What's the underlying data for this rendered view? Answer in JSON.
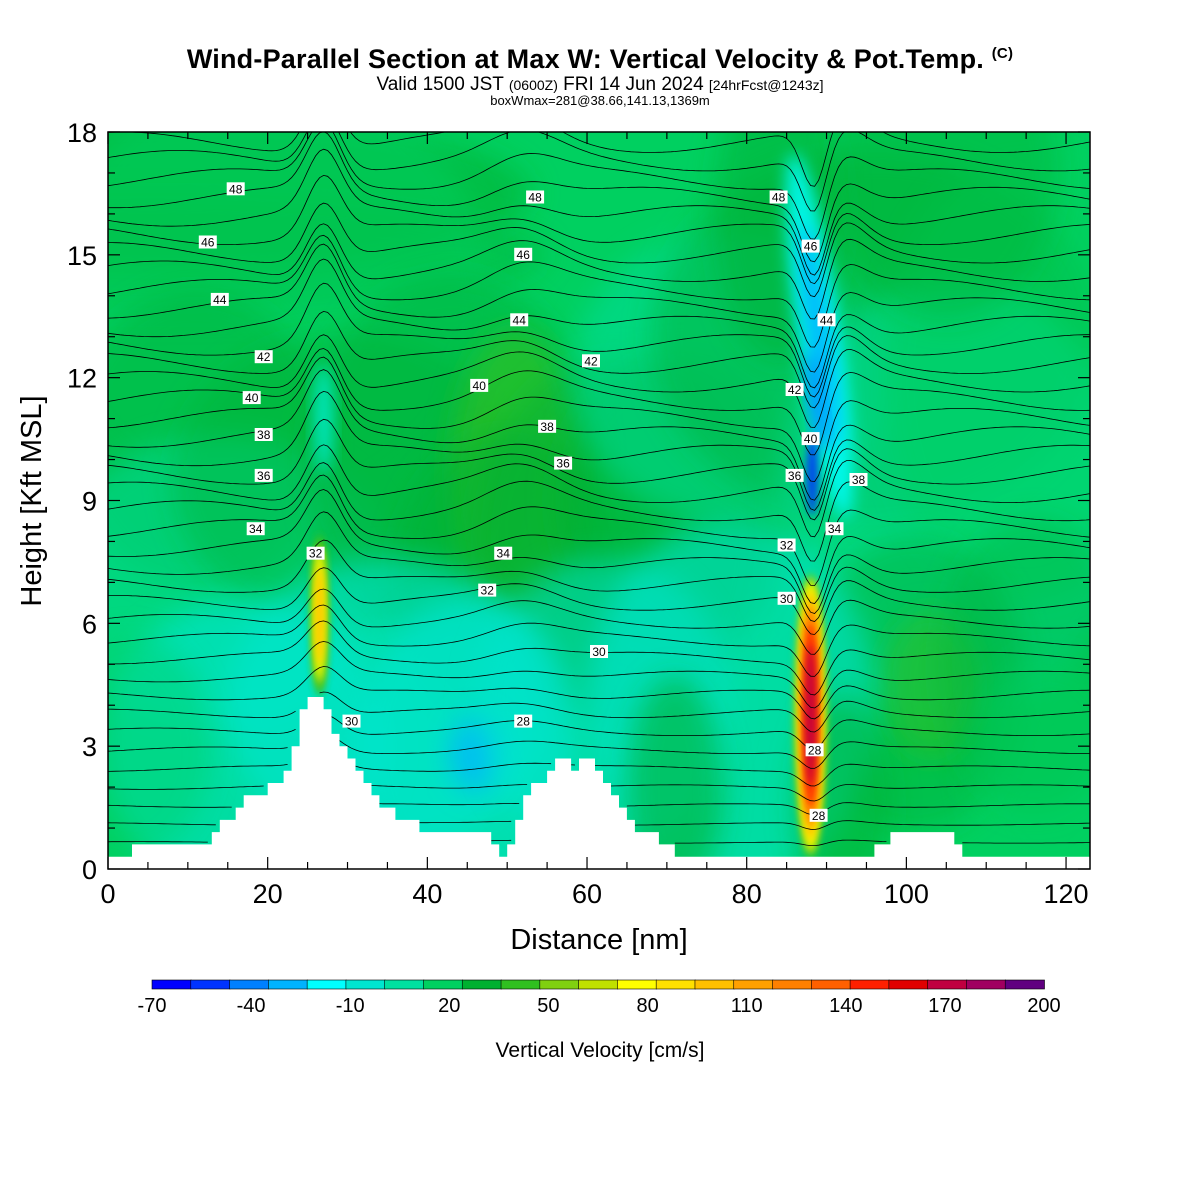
{
  "title": "Wind-Parallel Section at Max W: Vertical Velocity & Pot.Temp.",
  "title_mark": "(C)",
  "subtitle_main": "Valid 1500 JST",
  "subtitle_zulu": "(0600Z)",
  "subtitle_date": "FRI 14 Jun 2024",
  "subtitle_fcst": "[24hrFcst@1243z]",
  "subtitle2": "boxWmax=281@38.66,141.13,1369m",
  "chart_data": {
    "type": "heatmap",
    "xlabel": "Distance [nm]",
    "ylabel": "Height [Kft MSL]",
    "xlim": [
      0,
      123
    ],
    "ylim": [
      0,
      18
    ],
    "x_ticks": [
      "0",
      "20",
      "40",
      "60",
      "80",
      "100",
      "120"
    ],
    "y_ticks": [
      "0",
      "3",
      "6",
      "9",
      "12",
      "15",
      "18"
    ],
    "colorbar": {
      "title": "Vertical Velocity [cm/s]",
      "labels": [
        "-70",
        "-40",
        "-10",
        "20",
        "50",
        "80",
        "110",
        "140",
        "170",
        "200"
      ],
      "colors": [
        "#0000ff",
        "#0033ff",
        "#0080ff",
        "#00b3ff",
        "#00ffff",
        "#00e6d0",
        "#00e0a0",
        "#00d060",
        "#00b030",
        "#30c020",
        "#80d010",
        "#c0e000",
        "#ffff00",
        "#ffe000",
        "#ffc000",
        "#ffa000",
        "#ff8000",
        "#ff6000",
        "#ff2000",
        "#e00000",
        "#c00040",
        "#a00060",
        "#600080"
      ],
      "levels": [
        -70,
        -60,
        -50,
        -40,
        -30,
        -20,
        -10,
        0,
        10,
        20,
        30,
        40,
        50,
        60,
        70,
        80,
        90,
        100,
        110,
        120,
        130,
        140,
        150,
        160,
        170,
        180,
        190,
        200
      ]
    },
    "background_value": 0,
    "updrafts": [
      {
        "x": 26.5,
        "bottom": 4.2,
        "top": 8.2,
        "peak": 60
      },
      {
        "x": 88,
        "bottom": 0.3,
        "top": 7.2,
        "peak": 180
      }
    ],
    "downdraft": {
      "x": 88.5,
      "bottom": 8.0,
      "top": 18,
      "peak": -45
    },
    "theta_contour_labels": [
      {
        "value": "48",
        "x": 16,
        "y": 16.6
      },
      {
        "value": "48",
        "x": 53.5,
        "y": 16.4
      },
      {
        "value": "48",
        "x": 84,
        "y": 16.4
      },
      {
        "value": "46",
        "x": 12.5,
        "y": 15.3
      },
      {
        "value": "46",
        "x": 52,
        "y": 15.0
      },
      {
        "value": "46",
        "x": 88,
        "y": 15.2
      },
      {
        "value": "44",
        "x": 14,
        "y": 13.9
      },
      {
        "value": "44",
        "x": 51.5,
        "y": 13.4
      },
      {
        "value": "44",
        "x": 90,
        "y": 13.4
      },
      {
        "value": "42",
        "x": 19.5,
        "y": 12.5
      },
      {
        "value": "42",
        "x": 60.5,
        "y": 12.4
      },
      {
        "value": "42",
        "x": 86,
        "y": 11.7
      },
      {
        "value": "40",
        "x": 18,
        "y": 11.5
      },
      {
        "value": "40",
        "x": 46.5,
        "y": 11.8
      },
      {
        "value": "40",
        "x": 88,
        "y": 10.5
      },
      {
        "value": "38",
        "x": 19.5,
        "y": 10.6
      },
      {
        "value": "38",
        "x": 55,
        "y": 10.8
      },
      {
        "value": "38",
        "x": 94,
        "y": 9.5
      },
      {
        "value": "36",
        "x": 19.5,
        "y": 9.6
      },
      {
        "value": "36",
        "x": 57,
        "y": 9.9
      },
      {
        "value": "36",
        "x": 86,
        "y": 9.6
      },
      {
        "value": "34",
        "x": 18.5,
        "y": 8.3
      },
      {
        "value": "34",
        "x": 49.5,
        "y": 7.7
      },
      {
        "value": "34",
        "x": 91,
        "y": 8.3
      },
      {
        "value": "32",
        "x": 26,
        "y": 7.7
      },
      {
        "value": "32",
        "x": 47.5,
        "y": 6.8
      },
      {
        "value": "32",
        "x": 85,
        "y": 7.9
      },
      {
        "value": "30",
        "x": 30.5,
        "y": 3.6
      },
      {
        "value": "30",
        "x": 61.5,
        "y": 5.3
      },
      {
        "value": "30",
        "x": 85,
        "y": 6.6
      },
      {
        "value": "28",
        "x": 52,
        "y": 3.6
      },
      {
        "value": "28",
        "x": 88.5,
        "y": 2.9
      },
      {
        "value": "28",
        "x": 89,
        "y": 1.3
      }
    ],
    "terrain": [
      [
        0,
        0.3
      ],
      [
        3,
        0.3
      ],
      [
        3,
        0.6
      ],
      [
        13,
        0.6
      ],
      [
        13,
        0.9
      ],
      [
        14,
        0.9
      ],
      [
        14,
        1.2
      ],
      [
        16,
        1.2
      ],
      [
        16,
        1.5
      ],
      [
        17,
        1.5
      ],
      [
        17,
        1.8
      ],
      [
        20,
        1.8
      ],
      [
        20,
        2.1
      ],
      [
        22,
        2.1
      ],
      [
        22,
        2.4
      ],
      [
        23,
        2.4
      ],
      [
        23,
        3.0
      ],
      [
        24,
        3.0
      ],
      [
        24,
        3.9
      ],
      [
        25,
        3.9
      ],
      [
        25,
        4.2
      ],
      [
        27,
        4.2
      ],
      [
        27,
        3.9
      ],
      [
        28,
        3.9
      ],
      [
        28,
        3.3
      ],
      [
        29,
        3.3
      ],
      [
        29,
        3.0
      ],
      [
        30,
        3.0
      ],
      [
        30,
        2.7
      ],
      [
        31,
        2.7
      ],
      [
        31,
        2.4
      ],
      [
        32,
        2.4
      ],
      [
        32,
        2.1
      ],
      [
        33,
        2.1
      ],
      [
        33,
        1.8
      ],
      [
        34,
        1.8
      ],
      [
        34,
        1.5
      ],
      [
        36,
        1.5
      ],
      [
        36,
        1.2
      ],
      [
        39,
        1.2
      ],
      [
        39,
        0.9
      ],
      [
        48,
        0.9
      ],
      [
        48,
        0.6
      ],
      [
        49,
        0.6
      ],
      [
        49,
        0.3
      ],
      [
        50,
        0.3
      ],
      [
        50,
        0.6
      ],
      [
        51,
        0.6
      ],
      [
        51,
        1.2
      ],
      [
        52,
        1.2
      ],
      [
        52,
        1.8
      ],
      [
        53,
        1.8
      ],
      [
        53,
        2.1
      ],
      [
        55,
        2.1
      ],
      [
        55,
        2.4
      ],
      [
        56,
        2.4
      ],
      [
        56,
        2.7
      ],
      [
        58,
        2.7
      ],
      [
        58,
        2.4
      ],
      [
        59,
        2.4
      ],
      [
        59,
        2.7
      ],
      [
        61,
        2.7
      ],
      [
        61,
        2.4
      ],
      [
        62,
        2.4
      ],
      [
        62,
        2.1
      ],
      [
        63,
        2.1
      ],
      [
        63,
        1.8
      ],
      [
        64,
        1.8
      ],
      [
        64,
        1.5
      ],
      [
        65,
        1.5
      ],
      [
        65,
        1.2
      ],
      [
        66,
        1.2
      ],
      [
        66,
        0.9
      ],
      [
        69,
        0.9
      ],
      [
        69,
        0.6
      ],
      [
        71,
        0.6
      ],
      [
        71,
        0.3
      ],
      [
        96,
        0.3
      ],
      [
        96,
        0.6
      ],
      [
        98,
        0.6
      ],
      [
        98,
        0.9
      ],
      [
        106,
        0.9
      ],
      [
        106,
        0.6
      ],
      [
        107,
        0.6
      ],
      [
        107,
        0.3
      ],
      [
        123,
        0.3
      ],
      [
        123,
        0
      ],
      [
        0,
        0
      ]
    ]
  }
}
